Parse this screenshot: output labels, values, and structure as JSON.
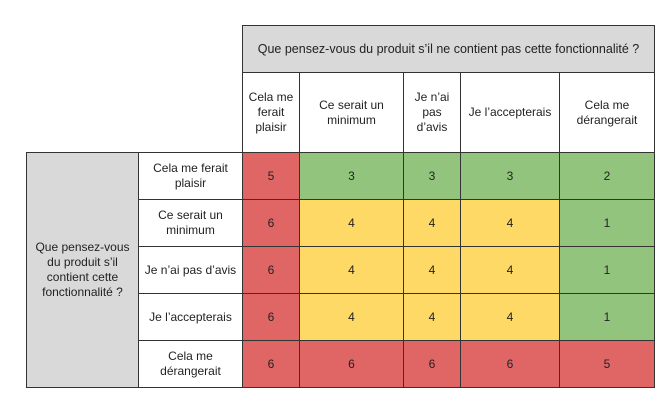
{
  "column_question": "Que pensez-vous du produit s’il ne contient pas cette fonctionnalité ?",
  "row_question": "Que pensez-vous du produit s’il contient cette fonctionnalité ?",
  "column_headers": [
    "Cela me ferait plaisir",
    "Ce serait un minimum",
    "Je n’ai pas d’avis",
    "Je l’accepterais",
    "Cela me dérangerait"
  ],
  "row_headers": [
    "Cela me ferait plaisir",
    "Ce serait un minimum",
    "Je n’ai pas d’avis",
    "Je l’accepterais",
    "Cela me dérangerait"
  ],
  "cells": [
    [
      "5",
      "3",
      "3",
      "3",
      "2"
    ],
    [
      "6",
      "4",
      "4",
      "4",
      "1"
    ],
    [
      "6",
      "4",
      "4",
      "4",
      "1"
    ],
    [
      "6",
      "4",
      "4",
      "4",
      "1"
    ],
    [
      "6",
      "6",
      "6",
      "6",
      "5"
    ]
  ],
  "colors": {
    "red": "#e06666",
    "green": "#93c47d",
    "yellow": "#ffd966",
    "header_gray": "#d9d9d9"
  }
}
